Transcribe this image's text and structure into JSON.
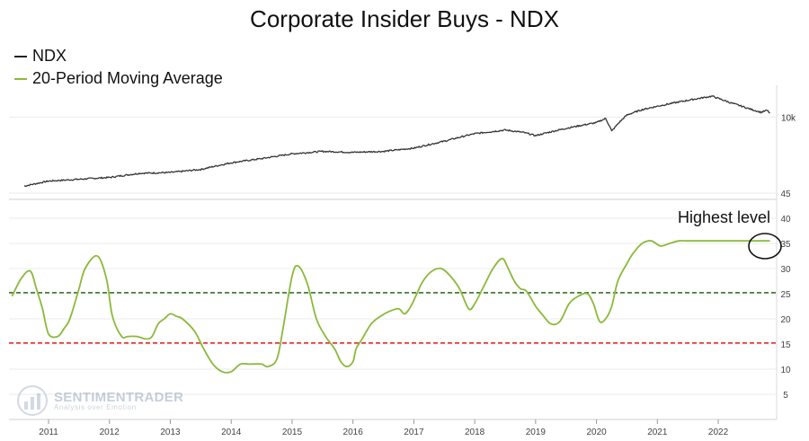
{
  "chart_data": [
    {
      "type": "line",
      "title": "Corporate Insider Buys - NDX",
      "y_scale": "log",
      "y_tick_labels": [
        "10k"
      ],
      "series": [
        {
          "name": "NDX",
          "color": "#333333",
          "x": [
            2010.6,
            2011.0,
            2011.5,
            2012.0,
            2012.5,
            2013.0,
            2013.5,
            2014.0,
            2014.5,
            2015.0,
            2015.5,
            2016.0,
            2016.5,
            2017.0,
            2017.5,
            2018.0,
            2018.5,
            2018.8,
            2019.0,
            2019.5,
            2020.0,
            2020.15,
            2020.25,
            2020.5,
            2020.75,
            2021.0,
            2021.5,
            2021.9,
            2022.0,
            2022.2,
            2022.5,
            2022.7,
            2022.8,
            2022.85
          ],
          "values": [
            2000,
            2250,
            2350,
            2450,
            2700,
            2750,
            2950,
            3450,
            3800,
            4250,
            4500,
            4400,
            4500,
            4850,
            5700,
            6800,
            7400,
            7000,
            6500,
            7700,
            8800,
            9700,
            7200,
            10500,
            11900,
            12900,
            14800,
            16300,
            15500,
            14000,
            12200,
            11200,
            11700,
            11000
          ]
        }
      ]
    },
    {
      "type": "line",
      "ylim": [
        0,
        45
      ],
      "y_ticks": [
        5,
        10,
        15,
        20,
        25,
        30,
        35,
        40,
        45
      ],
      "x_ticks": [
        2011,
        2012,
        2013,
        2014,
        2015,
        2016,
        2017,
        2018,
        2019,
        2020,
        2021,
        2022
      ],
      "series": [
        {
          "name": "20-Period Moving Average",
          "color": "#8cb83c",
          "x": [
            2010.4,
            2010.55,
            2010.7,
            2010.8,
            2010.9,
            2011.0,
            2011.15,
            2011.25,
            2011.35,
            2011.5,
            2011.6,
            2011.8,
            2011.95,
            2012.05,
            2012.2,
            2012.3,
            2012.45,
            2012.6,
            2012.7,
            2012.8,
            2012.9,
            2013.0,
            2013.1,
            2013.2,
            2013.4,
            2013.55,
            2013.7,
            2013.85,
            2014.0,
            2014.15,
            2014.3,
            2014.5,
            2014.6,
            2014.75,
            2014.85,
            2015.0,
            2015.1,
            2015.25,
            2015.4,
            2015.55,
            2015.7,
            2015.8,
            2015.9,
            2016.0,
            2016.05,
            2016.15,
            2016.3,
            2016.45,
            2016.6,
            2016.75,
            2016.85,
            2016.95,
            2017.05,
            2017.15,
            2017.3,
            2017.45,
            2017.6,
            2017.75,
            2017.9,
            2018.0,
            2018.15,
            2018.3,
            2018.45,
            2018.55,
            2018.65,
            2018.75,
            2018.85,
            2019.0,
            2019.1,
            2019.25,
            2019.4,
            2019.55,
            2019.7,
            2019.85,
            2019.95,
            2020.05,
            2020.15,
            2020.25,
            2020.35,
            2020.5,
            2020.6,
            2020.75,
            2020.9,
            2021.05,
            2021.2,
            2021.35,
            2021.5,
            2021.65,
            2021.8,
            2021.95,
            2022.1,
            2022.25,
            2022.4,
            2022.55,
            2022.7,
            2022.8,
            2022.85
          ],
          "values": [
            24.5,
            28,
            29.5,
            26,
            22,
            17,
            16.5,
            18,
            20,
            26,
            30,
            32.5,
            28,
            20.5,
            16.5,
            16.5,
            16.5,
            16,
            16.5,
            19,
            20,
            21,
            20.5,
            20,
            17.5,
            14,
            11,
            9.5,
            9.5,
            11,
            11,
            11,
            10.5,
            12,
            18,
            28.5,
            30.5,
            27,
            20,
            16.5,
            14,
            11.5,
            10.5,
            11.5,
            14,
            16,
            19,
            20.5,
            21.5,
            22,
            21,
            22.5,
            25,
            27.5,
            29.5,
            30,
            28.5,
            26,
            22,
            23,
            26.5,
            30,
            32,
            30,
            27.5,
            26,
            25.5,
            22.5,
            21,
            19,
            19.5,
            23,
            24.5,
            25,
            23,
            19.5,
            20,
            22.5,
            27.5,
            31,
            33,
            35,
            35.5,
            34.5,
            35,
            35.5,
            35.5,
            35.5,
            35.5,
            35.5,
            35.5,
            35.5,
            35.5,
            35.5,
            35.5,
            35.5,
            35.5
          ]
        }
      ],
      "reference_lines": [
        {
          "value": 25.2,
          "color": "#2e6b1e",
          "style": "dashed"
        },
        {
          "value": 15.2,
          "color": "#e02020",
          "style": "dashed"
        }
      ],
      "annotation": {
        "text": "Highest level",
        "target_x": 2022.7,
        "target_y": 35
      }
    }
  ],
  "legend": [
    {
      "label": "NDX",
      "color": "#222222"
    },
    {
      "label": "20-Period Moving Average",
      "color": "#8cb83c"
    }
  ],
  "watermark": {
    "brand": "SENTIMENTRADER",
    "tagline": "Analysis over Emotion"
  }
}
